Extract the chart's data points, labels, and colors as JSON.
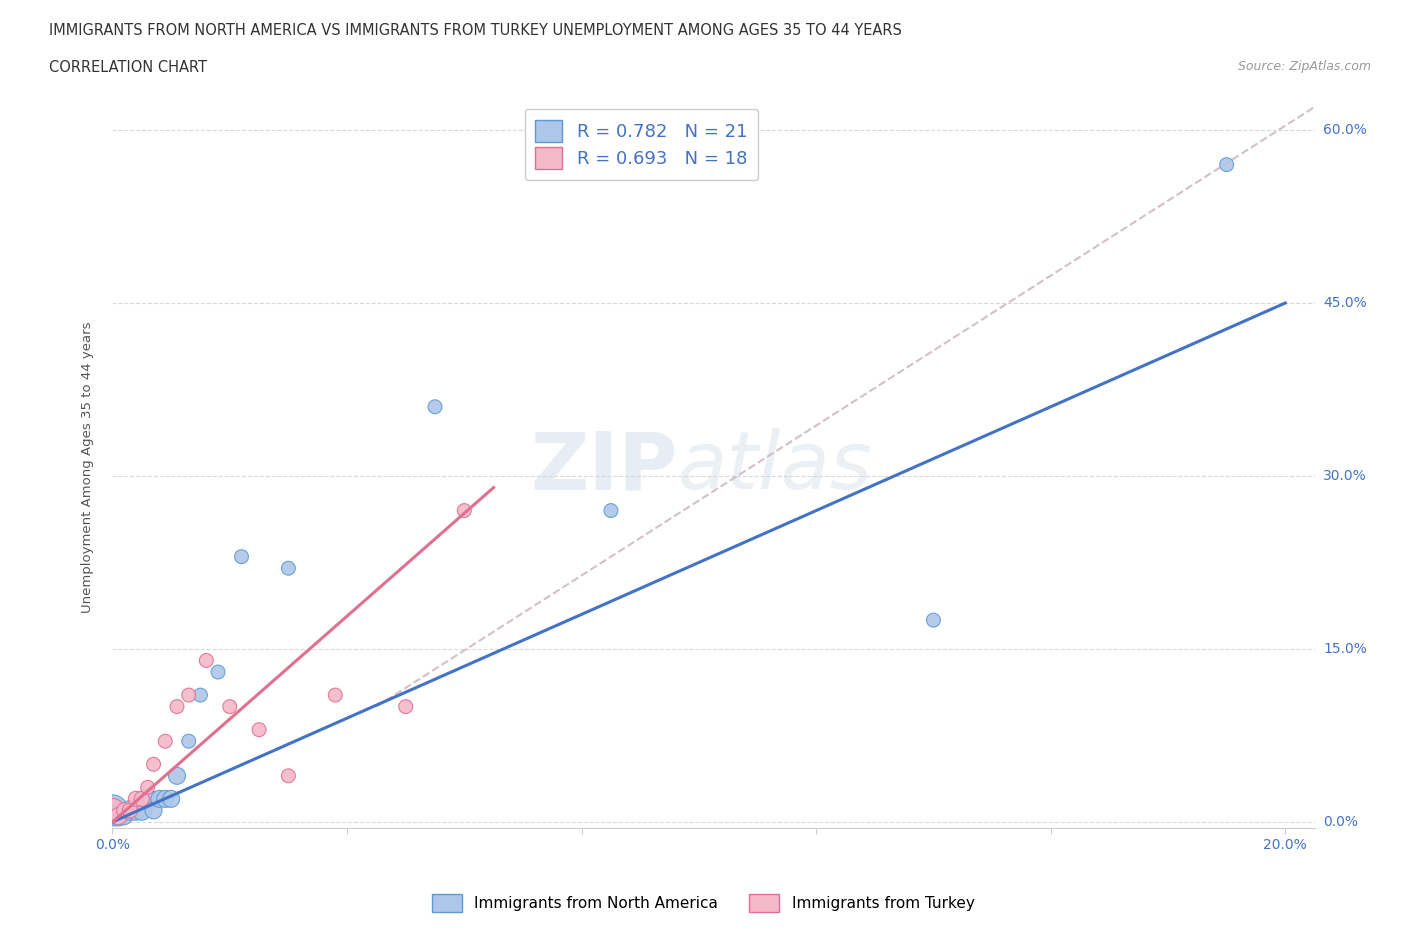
{
  "title_line1": "IMMIGRANTS FROM NORTH AMERICA VS IMMIGRANTS FROM TURKEY UNEMPLOYMENT AMONG AGES 35 TO 44 YEARS",
  "title_line2": "CORRELATION CHART",
  "source": "Source: ZipAtlas.com",
  "ylabel": "Unemployment Among Ages 35 to 44 years",
  "xlim": [
    0.0,
    0.205
  ],
  "ylim": [
    -0.005,
    0.62
  ],
  "xticks": [
    0.0,
    0.04,
    0.08,
    0.12,
    0.16,
    0.2
  ],
  "yticks": [
    0.0,
    0.15,
    0.3,
    0.45,
    0.6
  ],
  "ytick_labels": [
    "0.0%",
    "15.0%",
    "30.0%",
    "45.0%",
    "60.0%"
  ],
  "north_america_color": "#aec6e8",
  "north_america_edge": "#5b9bd5",
  "turkey_color": "#f4b8cb",
  "turkey_edge": "#e07090",
  "north_america_R": 0.782,
  "north_america_N": 21,
  "turkey_R": 0.693,
  "turkey_N": 18,
  "blue_line_color": "#4472c4",
  "pink_line_color": "#e07090",
  "dashed_line_color": "#c8b0bc",
  "watermark": "ZIPatlas",
  "north_america_x": [
    0.0,
    0.001,
    0.002,
    0.003,
    0.004,
    0.005,
    0.006,
    0.007,
    0.008,
    0.009,
    0.01,
    0.011,
    0.013,
    0.015,
    0.018,
    0.022,
    0.03,
    0.055,
    0.085,
    0.14,
    0.19
  ],
  "north_america_y": [
    0.01,
    0.005,
    0.005,
    0.01,
    0.01,
    0.01,
    0.02,
    0.01,
    0.02,
    0.02,
    0.02,
    0.04,
    0.07,
    0.11,
    0.13,
    0.23,
    0.22,
    0.36,
    0.27,
    0.175,
    0.57
  ],
  "north_america_size": [
    500,
    200,
    150,
    200,
    200,
    200,
    200,
    150,
    150,
    150,
    150,
    150,
    100,
    100,
    100,
    100,
    100,
    100,
    100,
    100,
    100
  ],
  "turkey_x": [
    0.0,
    0.001,
    0.002,
    0.003,
    0.004,
    0.005,
    0.006,
    0.007,
    0.009,
    0.011,
    0.013,
    0.016,
    0.02,
    0.025,
    0.03,
    0.038,
    0.05,
    0.06
  ],
  "turkey_y": [
    0.01,
    0.005,
    0.01,
    0.01,
    0.02,
    0.02,
    0.03,
    0.05,
    0.07,
    0.1,
    0.11,
    0.14,
    0.1,
    0.08,
    0.04,
    0.11,
    0.1,
    0.27
  ],
  "turkey_size": [
    300,
    150,
    120,
    120,
    120,
    120,
    100,
    100,
    100,
    100,
    100,
    100,
    100,
    100,
    100,
    100,
    100,
    100
  ],
  "blue_line_x": [
    0.0,
    0.2
  ],
  "blue_line_y": [
    0.0,
    0.45
  ],
  "pink_line_x": [
    0.0,
    0.065
  ],
  "pink_line_y": [
    0.0,
    0.29
  ],
  "dash_line_x": [
    0.045,
    0.205
  ],
  "dash_line_y": [
    0.1,
    0.62
  ]
}
